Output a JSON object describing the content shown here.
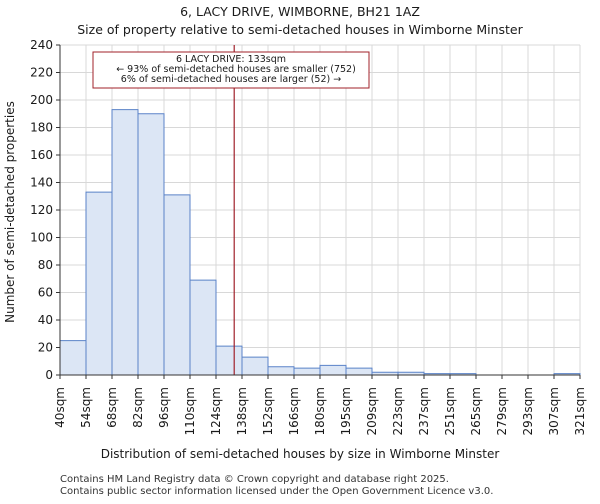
{
  "chart_data": {
    "type": "bar",
    "title": "6, LACY DRIVE, WIMBORNE, BH21 1AZ",
    "subtitle": "Size of property relative to semi-detached houses in Wimborne Minster",
    "xlabel": "Distribution of semi-detached houses by size in Wimborne Minster",
    "ylabel": "Number of semi-detached properties",
    "ylim": [
      0,
      240
    ],
    "yticks": [
      0,
      20,
      40,
      60,
      80,
      100,
      120,
      140,
      160,
      180,
      200,
      220,
      240
    ],
    "x_tick_labels": [
      "40sqm",
      "54sqm",
      "68sqm",
      "82sqm",
      "96sqm",
      "110sqm",
      "124sqm",
      "138sqm",
      "152sqm",
      "166sqm",
      "180sqm",
      "195sqm",
      "209sqm",
      "223sqm",
      "237sqm",
      "251sqm",
      "265sqm",
      "279sqm",
      "293sqm",
      "307sqm",
      "321sqm"
    ],
    "values": [
      25,
      133,
      193,
      190,
      131,
      69,
      21,
      13,
      6,
      5,
      7,
      5,
      2,
      2,
      1,
      1,
      0,
      0,
      0,
      1
    ],
    "grid": true,
    "marker": {
      "bin_position": 6.7,
      "label": "6 LACY DRIVE: 133sqm"
    },
    "annotation": {
      "lines": [
        "6 LACY DRIVE: 133sqm",
        "← 93% of semi-detached houses are smaller (752)",
        "6% of semi-detached houses are larger (52) →"
      ]
    },
    "colors": {
      "bar_fill": "#dce6f5",
      "bar_edge": "#5a82c8",
      "marker": "#a0202a",
      "grid": "#d8d8d8",
      "axis": "#333333"
    }
  },
  "footer": {
    "line1": "Contains HM Land Registry data © Crown copyright and database right 2025.",
    "line2": "Contains public sector information licensed under the Open Government Licence v3.0."
  }
}
